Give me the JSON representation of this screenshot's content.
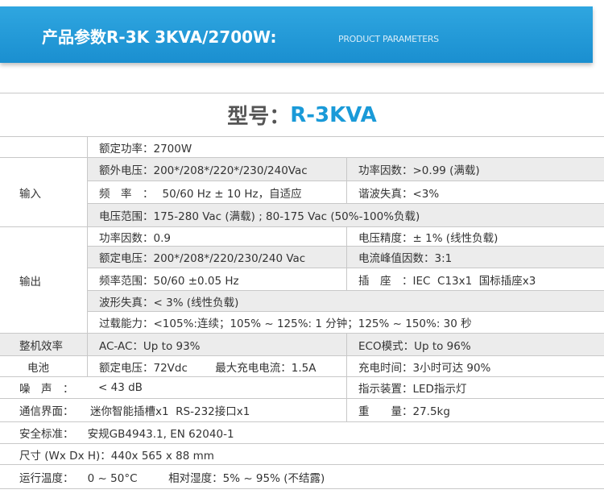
{
  "header": {
    "title": "产品参数R-3K 3KVA/2700W:",
    "subtitle": "PRODUCT PARAMETERS"
  },
  "model": {
    "label": "型号：",
    "value": "R-3KVA"
  },
  "rated_power": "额定功率：2700W",
  "input": {
    "label": "输入",
    "rows": [
      [
        "额外电压：200*/208*/220*/230/240Vac",
        "功率因数：>0.99 (满载)"
      ],
      [
        "频　率　：　 50/60 Hz ± 10 Hz，自适应",
        "谐波失真：<3%"
      ],
      [
        "电压范围：175-280 Vac (满载) ; 80-175 Vac (50%-100%负载)"
      ]
    ]
  },
  "output": {
    "label": "输出",
    "rows": [
      [
        "功率因数：0.9",
        "电压精度：± 1% (线性负载)"
      ],
      [
        "额定电压：200*/208*/220/230/240 Vac",
        "电流峰值因数：3:1"
      ],
      [
        "频率范围：50/60 ±0.05 Hz",
        "插　座　：IEC  C13x1  国标插座x3"
      ],
      [
        "波形失真：< 3% (线性负载)"
      ],
      [
        "过载能力：<105%:连续；105% ~ 125%: 1 分钟；125% ~ 150%: 30 秒"
      ]
    ]
  },
  "rows": [
    [
      "整机效率",
      "AC-AC：Up to 93%",
      "ECO模式：Up to 96%"
    ],
    [
      "电池",
      "额定电压：72Vdc        最大充电电流：1.5A",
      "充电时间：3小时可达 90%"
    ],
    [
      "噪　声　：",
      "< 43 dB",
      "指示装置：LED指示灯"
    ],
    [
      "通信界面：",
      "迷你智能插槽x1  RS-232接口x1",
      "重　　量：27.5kg"
    ]
  ],
  "footer_rows": [
    "安全标准：    安规GB4943.1, EN 62040-1",
    "尺寸 (Wx Dx H)：440x 565 x 88 mm",
    "运行温度：    0 ~ 50°C         相对湿度：5% ~ 95% (不结露)"
  ]
}
